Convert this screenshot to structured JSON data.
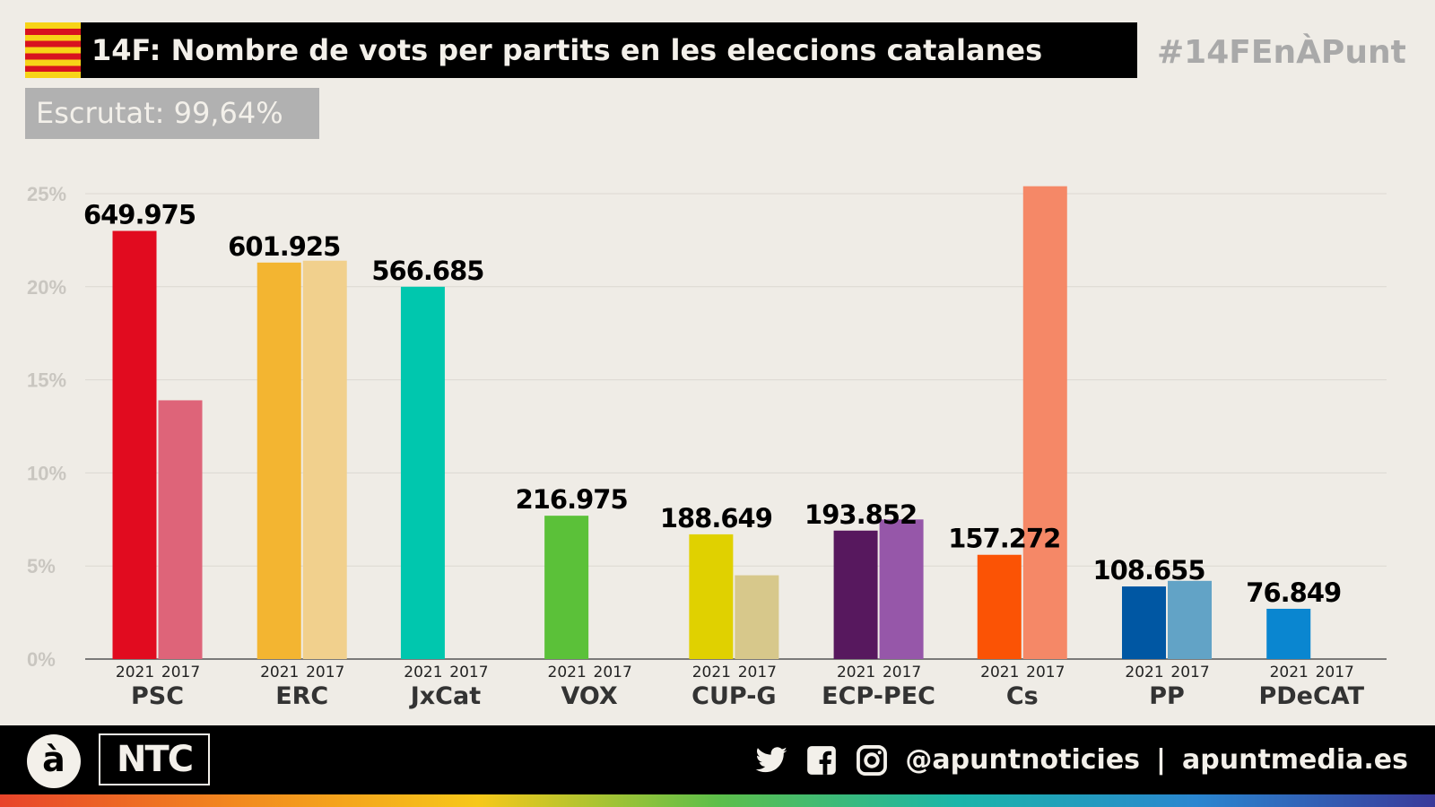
{
  "header": {
    "title": "14F: Nombre de vots per partits en les eleccions catalanes",
    "hashtag": "#14FEnÀPunt",
    "escrutat": "Escrutat: 99,64%"
  },
  "chart_data": {
    "type": "bar",
    "title": "14F: Nombre de vots per partits en les eleccions catalanes",
    "ylabel": "",
    "xlabel": "",
    "ylim": [
      0,
      25
    ],
    "yticks": [
      "0%",
      "5%",
      "10%",
      "15%",
      "20%",
      "25%"
    ],
    "grid": true,
    "years": [
      "2021",
      "2017"
    ],
    "categories": [
      "PSC",
      "ERC",
      "JxCat",
      "VOX",
      "CUP-G",
      "ECP-PEC",
      "Cs",
      "PP",
      "PDeCAT"
    ],
    "series": [
      {
        "name": "2021",
        "values": [
          23.0,
          21.3,
          20.0,
          7.7,
          6.7,
          6.9,
          5.6,
          3.9,
          2.7
        ]
      },
      {
        "name": "2017",
        "values": [
          13.9,
          21.4,
          null,
          null,
          4.5,
          7.5,
          25.4,
          4.2,
          null
        ]
      }
    ],
    "vote_labels": [
      "649.975",
      "601.925",
      "566.685",
      "216.975",
      "188.649",
      "193.852",
      "157.272",
      "108.655",
      "76.849"
    ],
    "colors_2021": [
      "#e10b1f",
      "#f3b531",
      "#00c7ae",
      "#5bc139",
      "#e0d100",
      "#57185e",
      "#fb5305",
      "#0057a3",
      "#0a86d0"
    ],
    "colors_2017": [
      "#de6479",
      "#f1d08d",
      "#00c7ae",
      "#5bc139",
      "#d7c88b",
      "#9657a9",
      "#f58867",
      "#62a3c6",
      "#0a86d0"
    ]
  },
  "footer": {
    "logo_a": "à",
    "logo_ntc": "NTC",
    "handle": "@apuntnoticies",
    "separator": "|",
    "website": "apuntmedia.es"
  }
}
